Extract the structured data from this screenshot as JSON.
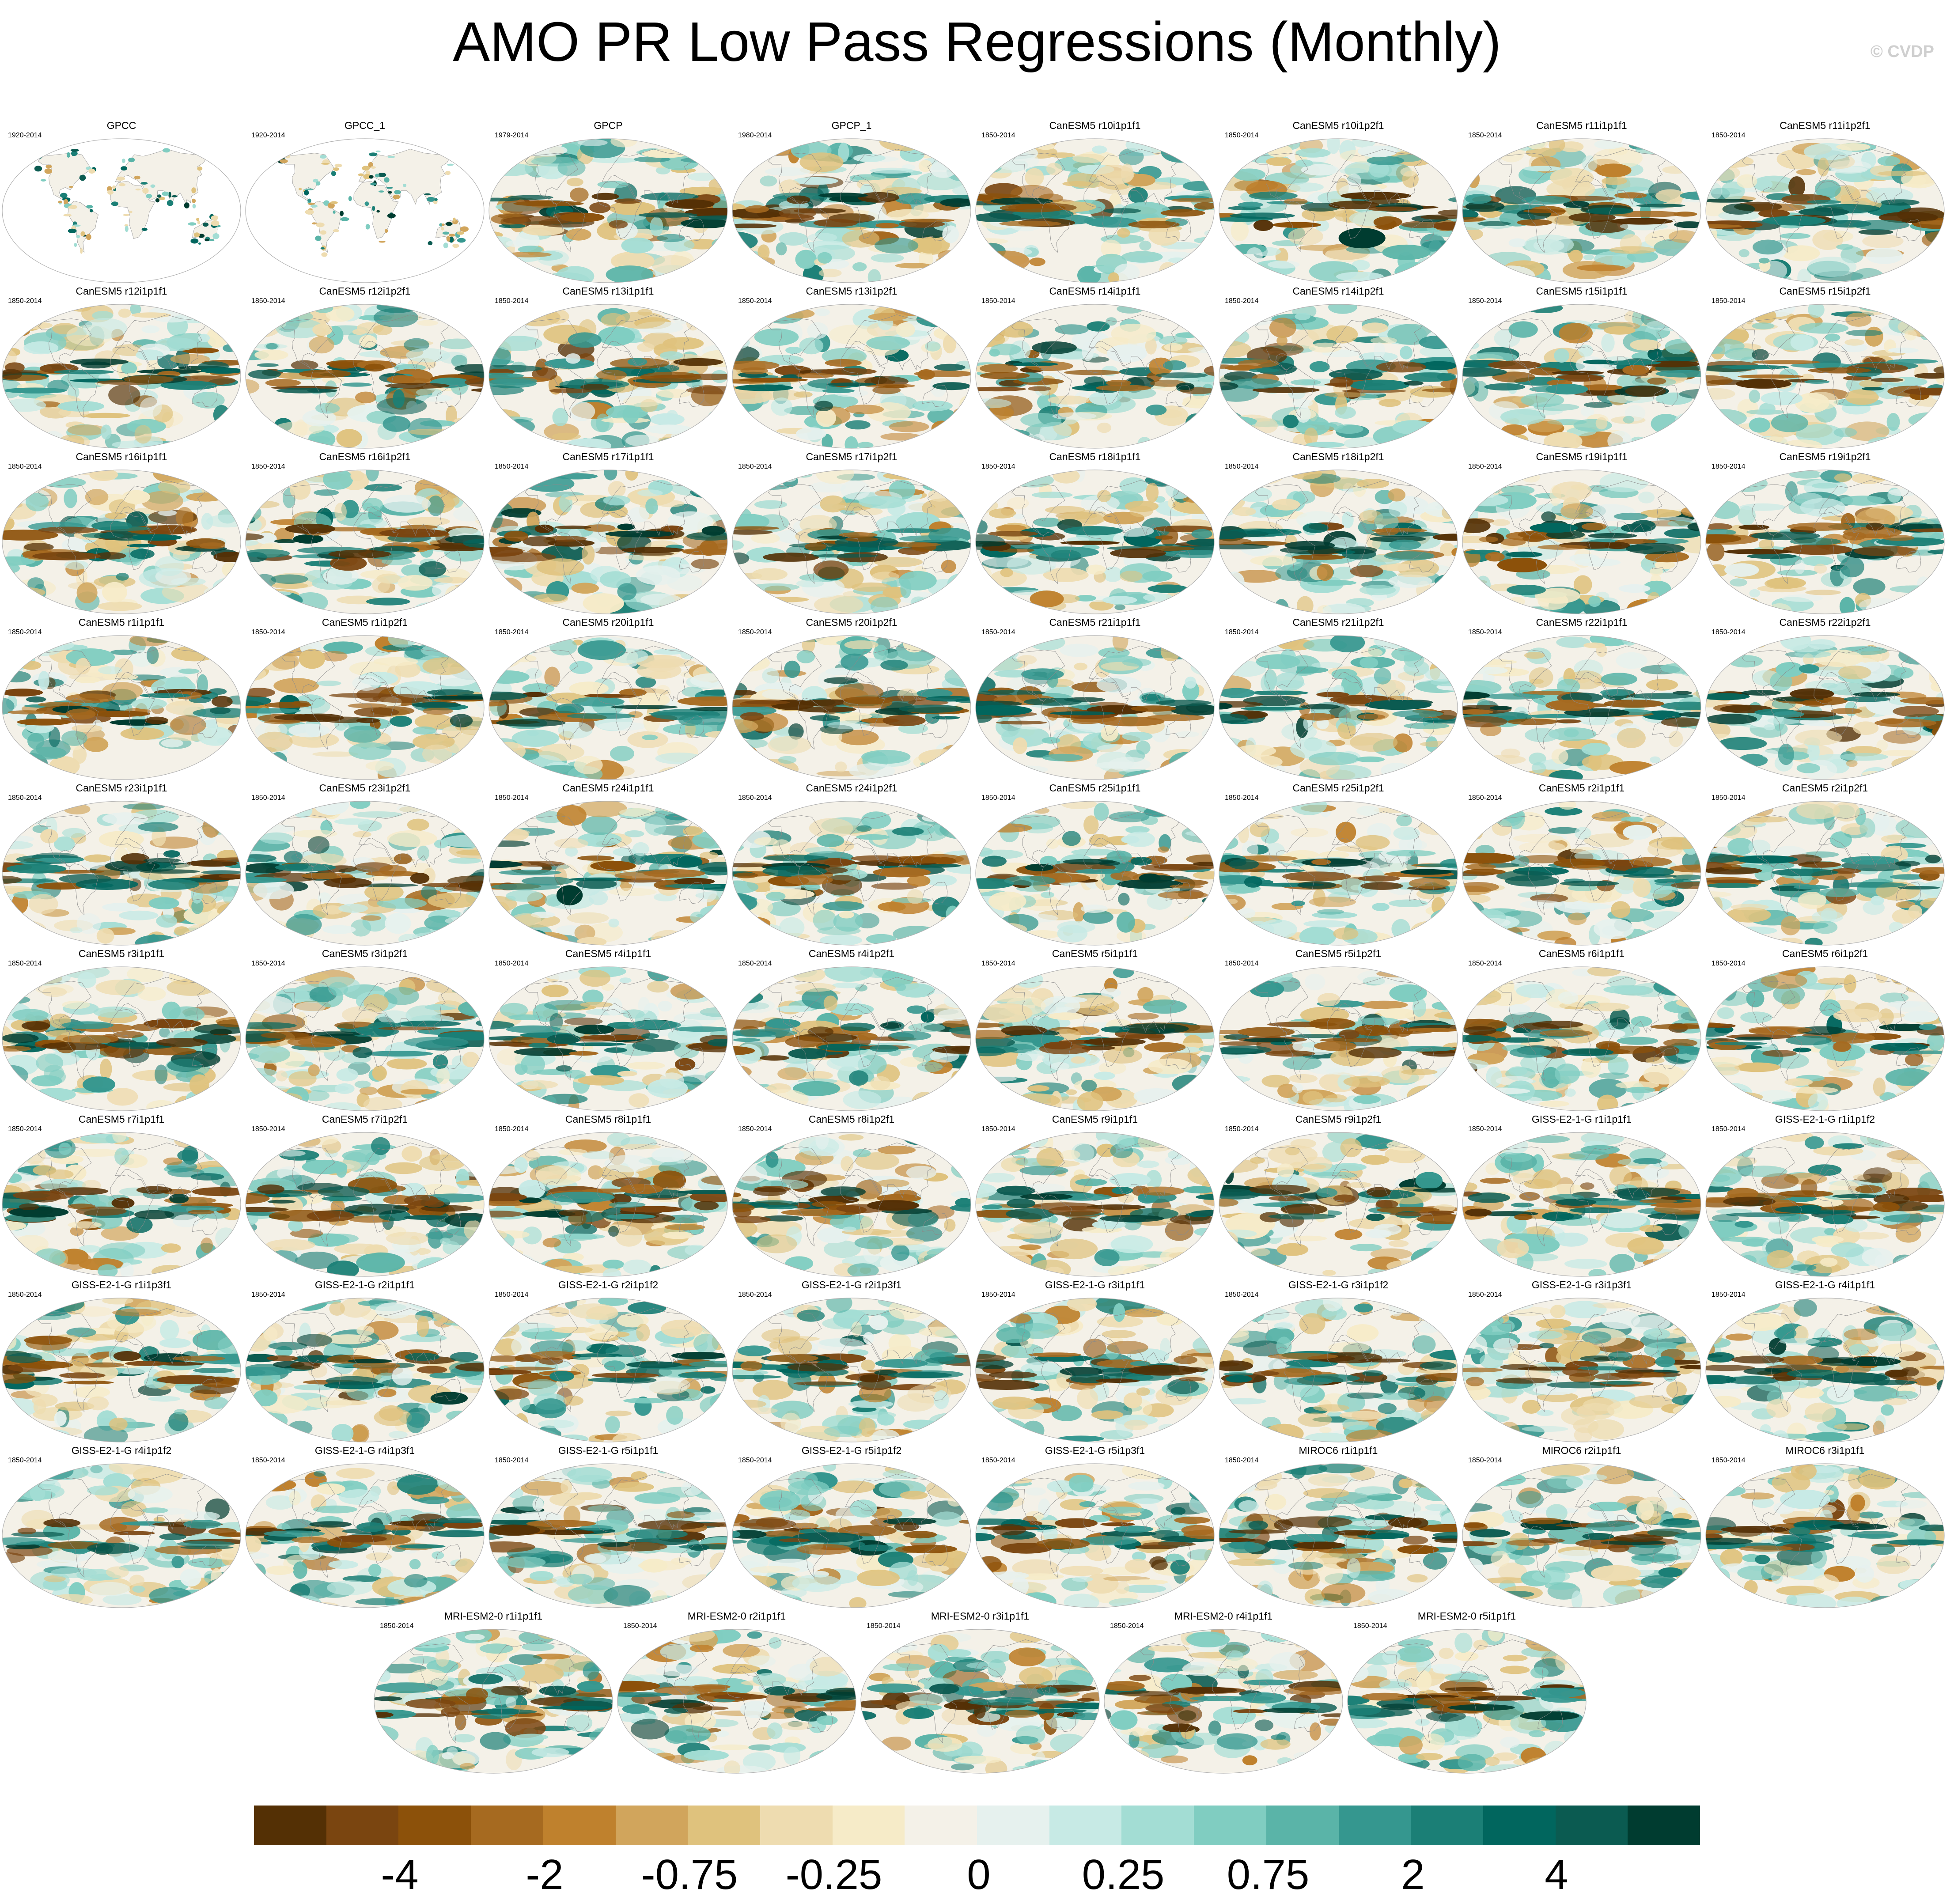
{
  "chart_data": {
    "type": "heatmap",
    "title": "AMO PR Low Pass Regressions (Monthly)",
    "watermark": "© CVDP",
    "projection": "robinson",
    "colormap": {
      "name": "brown-white-teal (BrBG)",
      "colors": [
        "#543005",
        "#7a4510",
        "#8c510a",
        "#a66a20",
        "#bf812d",
        "#d1a55c",
        "#dfc27d",
        "#eedcb0",
        "#f6ebc8",
        "#f4f1e8",
        "#e6f1ee",
        "#c7eae5",
        "#a3ddd4",
        "#80cdc1",
        "#5ab4a8",
        "#35978f",
        "#1b7f76",
        "#01665e",
        "#0b5b51",
        "#003c30"
      ],
      "tick_labels": [
        "-4",
        "-2",
        "-0.75",
        "-0.25",
        "0",
        "0.25",
        "0.75",
        "2",
        "4"
      ]
    },
    "panels": [
      {
        "title": "GPCC",
        "period": "1920-2014"
      },
      {
        "title": "GPCC_1",
        "period": "1920-2014"
      },
      {
        "title": "GPCP",
        "period": "1979-2014"
      },
      {
        "title": "GPCP_1",
        "period": "1980-2014"
      },
      {
        "title": "CanESM5 r10i1p1f1",
        "period": "1850-2014"
      },
      {
        "title": "CanESM5 r10i1p2f1",
        "period": "1850-2014"
      },
      {
        "title": "CanESM5 r11i1p1f1",
        "period": "1850-2014"
      },
      {
        "title": "CanESM5 r11i1p2f1",
        "period": "1850-2014"
      },
      {
        "title": "CanESM5 r12i1p1f1",
        "period": "1850-2014"
      },
      {
        "title": "CanESM5 r12i1p2f1",
        "period": "1850-2014"
      },
      {
        "title": "CanESM5 r13i1p1f1",
        "period": "1850-2014"
      },
      {
        "title": "CanESM5 r13i1p2f1",
        "period": "1850-2014"
      },
      {
        "title": "CanESM5 r14i1p1f1",
        "period": "1850-2014"
      },
      {
        "title": "CanESM5 r14i1p2f1",
        "period": "1850-2014"
      },
      {
        "title": "CanESM5 r15i1p1f1",
        "period": "1850-2014"
      },
      {
        "title": "CanESM5 r15i1p2f1",
        "period": "1850-2014"
      },
      {
        "title": "CanESM5 r16i1p1f1",
        "period": "1850-2014"
      },
      {
        "title": "CanESM5 r16i1p2f1",
        "period": "1850-2014"
      },
      {
        "title": "CanESM5 r17i1p1f1",
        "period": "1850-2014"
      },
      {
        "title": "CanESM5 r17i1p2f1",
        "period": "1850-2014"
      },
      {
        "title": "CanESM5 r18i1p1f1",
        "period": "1850-2014"
      },
      {
        "title": "CanESM5 r18i1p2f1",
        "period": "1850-2014"
      },
      {
        "title": "CanESM5 r19i1p1f1",
        "period": "1850-2014"
      },
      {
        "title": "CanESM5 r19i1p2f1",
        "period": "1850-2014"
      },
      {
        "title": "CanESM5 r1i1p1f1",
        "period": "1850-2014"
      },
      {
        "title": "CanESM5 r1i1p2f1",
        "period": "1850-2014"
      },
      {
        "title": "CanESM5 r20i1p1f1",
        "period": "1850-2014"
      },
      {
        "title": "CanESM5 r20i1p2f1",
        "period": "1850-2014"
      },
      {
        "title": "CanESM5 r21i1p1f1",
        "period": "1850-2014"
      },
      {
        "title": "CanESM5 r21i1p2f1",
        "period": "1850-2014"
      },
      {
        "title": "CanESM5 r22i1p1f1",
        "period": "1850-2014"
      },
      {
        "title": "CanESM5 r22i1p2f1",
        "period": "1850-2014"
      },
      {
        "title": "CanESM5 r23i1p1f1",
        "period": "1850-2014"
      },
      {
        "title": "CanESM5 r23i1p2f1",
        "period": "1850-2014"
      },
      {
        "title": "CanESM5 r24i1p1f1",
        "period": "1850-2014"
      },
      {
        "title": "CanESM5 r24i1p2f1",
        "period": "1850-2014"
      },
      {
        "title": "CanESM5 r25i1p1f1",
        "period": "1850-2014"
      },
      {
        "title": "CanESM5 r25i1p2f1",
        "period": "1850-2014"
      },
      {
        "title": "CanESM5 r2i1p1f1",
        "period": "1850-2014"
      },
      {
        "title": "CanESM5 r2i1p2f1",
        "period": "1850-2014"
      },
      {
        "title": "CanESM5 r3i1p1f1",
        "period": "1850-2014"
      },
      {
        "title": "CanESM5 r3i1p2f1",
        "period": "1850-2014"
      },
      {
        "title": "CanESM5 r4i1p1f1",
        "period": "1850-2014"
      },
      {
        "title": "CanESM5 r4i1p2f1",
        "period": "1850-2014"
      },
      {
        "title": "CanESM5 r5i1p1f1",
        "period": "1850-2014"
      },
      {
        "title": "CanESM5 r5i1p2f1",
        "period": "1850-2014"
      },
      {
        "title": "CanESM5 r6i1p1f1",
        "period": "1850-2014"
      },
      {
        "title": "CanESM5 r6i1p2f1",
        "period": "1850-2014"
      },
      {
        "title": "CanESM5 r7i1p1f1",
        "period": "1850-2014"
      },
      {
        "title": "CanESM5 r7i1p2f1",
        "period": "1850-2014"
      },
      {
        "title": "CanESM5 r8i1p1f1",
        "period": "1850-2014"
      },
      {
        "title": "CanESM5 r8i1p2f1",
        "period": "1850-2014"
      },
      {
        "title": "CanESM5 r9i1p1f1",
        "period": "1850-2014"
      },
      {
        "title": "CanESM5 r9i1p2f1",
        "period": "1850-2014"
      },
      {
        "title": "GISS-E2-1-G r1i1p1f1",
        "period": "1850-2014"
      },
      {
        "title": "GISS-E2-1-G r1i1p1f2",
        "period": "1850-2014"
      },
      {
        "title": "GISS-E2-1-G r1i1p3f1",
        "period": "1850-2014"
      },
      {
        "title": "GISS-E2-1-G r2i1p1f1",
        "period": "1850-2014"
      },
      {
        "title": "GISS-E2-1-G r2i1p1f2",
        "period": "1850-2014"
      },
      {
        "title": "GISS-E2-1-G r2i1p3f1",
        "period": "1850-2014"
      },
      {
        "title": "GISS-E2-1-G r3i1p1f1",
        "period": "1850-2014"
      },
      {
        "title": "GISS-E2-1-G r3i1p1f2",
        "period": "1850-2014"
      },
      {
        "title": "GISS-E2-1-G r3i1p3f1",
        "period": "1850-2014"
      },
      {
        "title": "GISS-E2-1-G r4i1p1f1",
        "period": "1850-2014"
      },
      {
        "title": "GISS-E2-1-G r4i1p1f2",
        "period": "1850-2014"
      },
      {
        "title": "GISS-E2-1-G r4i1p3f1",
        "period": "1850-2014"
      },
      {
        "title": "GISS-E2-1-G r5i1p1f1",
        "period": "1850-2014"
      },
      {
        "title": "GISS-E2-1-G r5i1p1f2",
        "period": "1850-2014"
      },
      {
        "title": "GISS-E2-1-G r5i1p3f1",
        "period": "1850-2014"
      },
      {
        "title": "MIROC6 r1i1p1f1",
        "period": "1850-2014"
      },
      {
        "title": "MIROC6 r2i1p1f1",
        "period": "1850-2014"
      },
      {
        "title": "MIROC6 r3i1p1f1",
        "period": "1850-2014"
      },
      {
        "title": "MRI-ESM2-0 r1i1p1f1",
        "period": "1850-2014"
      },
      {
        "title": "MRI-ESM2-0 r2i1p1f1",
        "period": "1850-2014"
      },
      {
        "title": "MRI-ESM2-0 r3i1p1f1",
        "period": "1850-2014"
      },
      {
        "title": "MRI-ESM2-0 r4i1p1f1",
        "period": "1850-2014"
      },
      {
        "title": "MRI-ESM2-0 r5i1p1f1",
        "period": "1850-2014"
      }
    ]
  }
}
